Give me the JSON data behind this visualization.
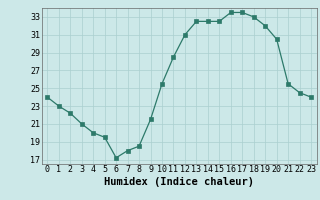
{
  "x": [
    0,
    1,
    2,
    3,
    4,
    5,
    6,
    7,
    8,
    9,
    10,
    11,
    12,
    13,
    14,
    15,
    16,
    17,
    18,
    19,
    20,
    21,
    22,
    23
  ],
  "y": [
    24.0,
    23.0,
    22.2,
    21.0,
    20.0,
    19.5,
    17.2,
    18.0,
    18.5,
    21.5,
    25.5,
    28.5,
    31.0,
    32.5,
    32.5,
    32.5,
    33.5,
    33.5,
    33.0,
    32.0,
    30.5,
    25.5,
    24.5,
    24.0
  ],
  "xlabel": "Humidex (Indice chaleur)",
  "xlim": [
    -0.5,
    23.5
  ],
  "ylim": [
    16.5,
    34.0
  ],
  "yticks": [
    17,
    19,
    21,
    23,
    25,
    27,
    29,
    31,
    33
  ],
  "xtick_labels": [
    "0",
    "1",
    "2",
    "3",
    "4",
    "5",
    "6",
    "7",
    "8",
    "9",
    "10",
    "11",
    "12",
    "13",
    "14",
    "15",
    "16",
    "17",
    "18",
    "19",
    "20",
    "21",
    "22",
    "23"
  ],
  "line_color": "#2d7a6a",
  "marker_color": "#2d7a6a",
  "bg_color": "#cce8e8",
  "grid_color": "#aacfcf",
  "label_fontsize": 7.5,
  "tick_fontsize": 6.0
}
